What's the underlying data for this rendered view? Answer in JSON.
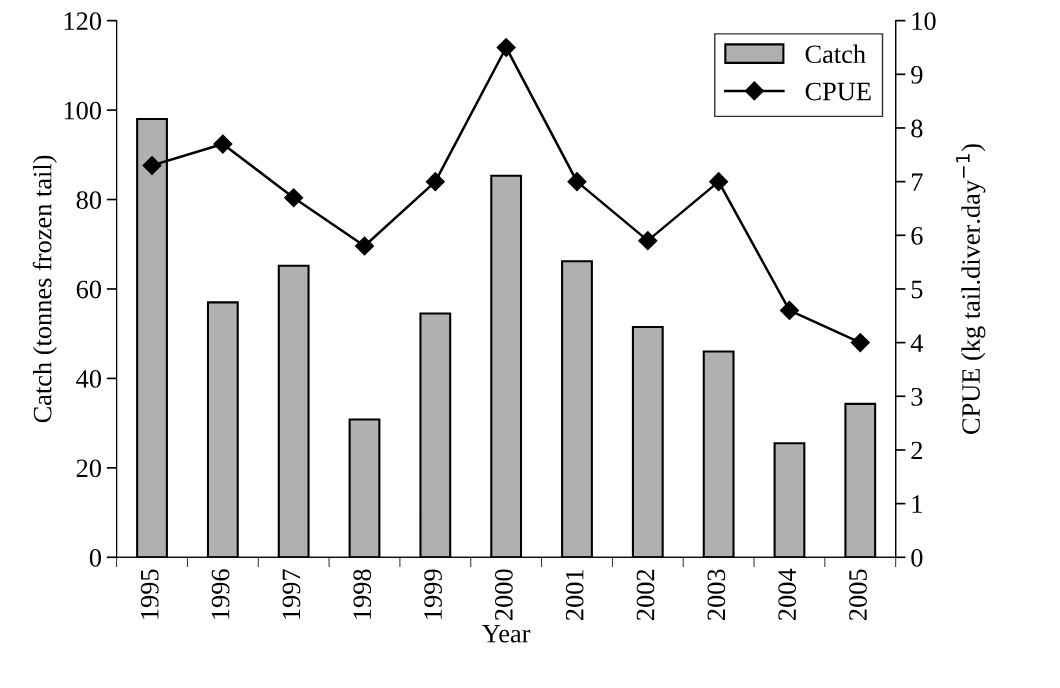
{
  "chart_data": {
    "type": "bar",
    "xlabel": "Year",
    "ylabel": "Catch (tonnes frozen tail)",
    "y2label": "CPUE (kg tail.diver.day$^{−1}$)",
    "categories": [
      "1995",
      "1996",
      "1997",
      "1998",
      "1999",
      "2000",
      "2001",
      "2002",
      "2003",
      "2004",
      "2005"
    ],
    "series": [
      {
        "name": "Catch",
        "color": "#b0b0b0",
        "values": [
          98,
          57,
          65.2,
          30.8,
          54.5,
          85.3,
          66.2,
          51.5,
          46,
          25.5,
          34.3
        ]
      },
      {
        "name": "CPUE",
        "type": "line",
        "axis": "y2",
        "color": "#000000",
        "marker": "diamond",
        "line_style": "solid",
        "values": [
          7.3,
          7.7,
          6.7,
          5.8,
          7.0,
          9.5,
          7.0,
          5.9,
          7.0,
          4.6,
          4.0
        ]
      }
    ],
    "ylim": [
      0,
      120
    ],
    "yticks": [
      0,
      20,
      40,
      60,
      80,
      100,
      120
    ],
    "y2lim": [
      0,
      10
    ],
    "y2ticks": [
      0,
      1,
      2,
      3,
      4,
      5,
      6,
      7,
      8,
      9,
      10
    ],
    "grid": false,
    "legend": "top right"
  }
}
